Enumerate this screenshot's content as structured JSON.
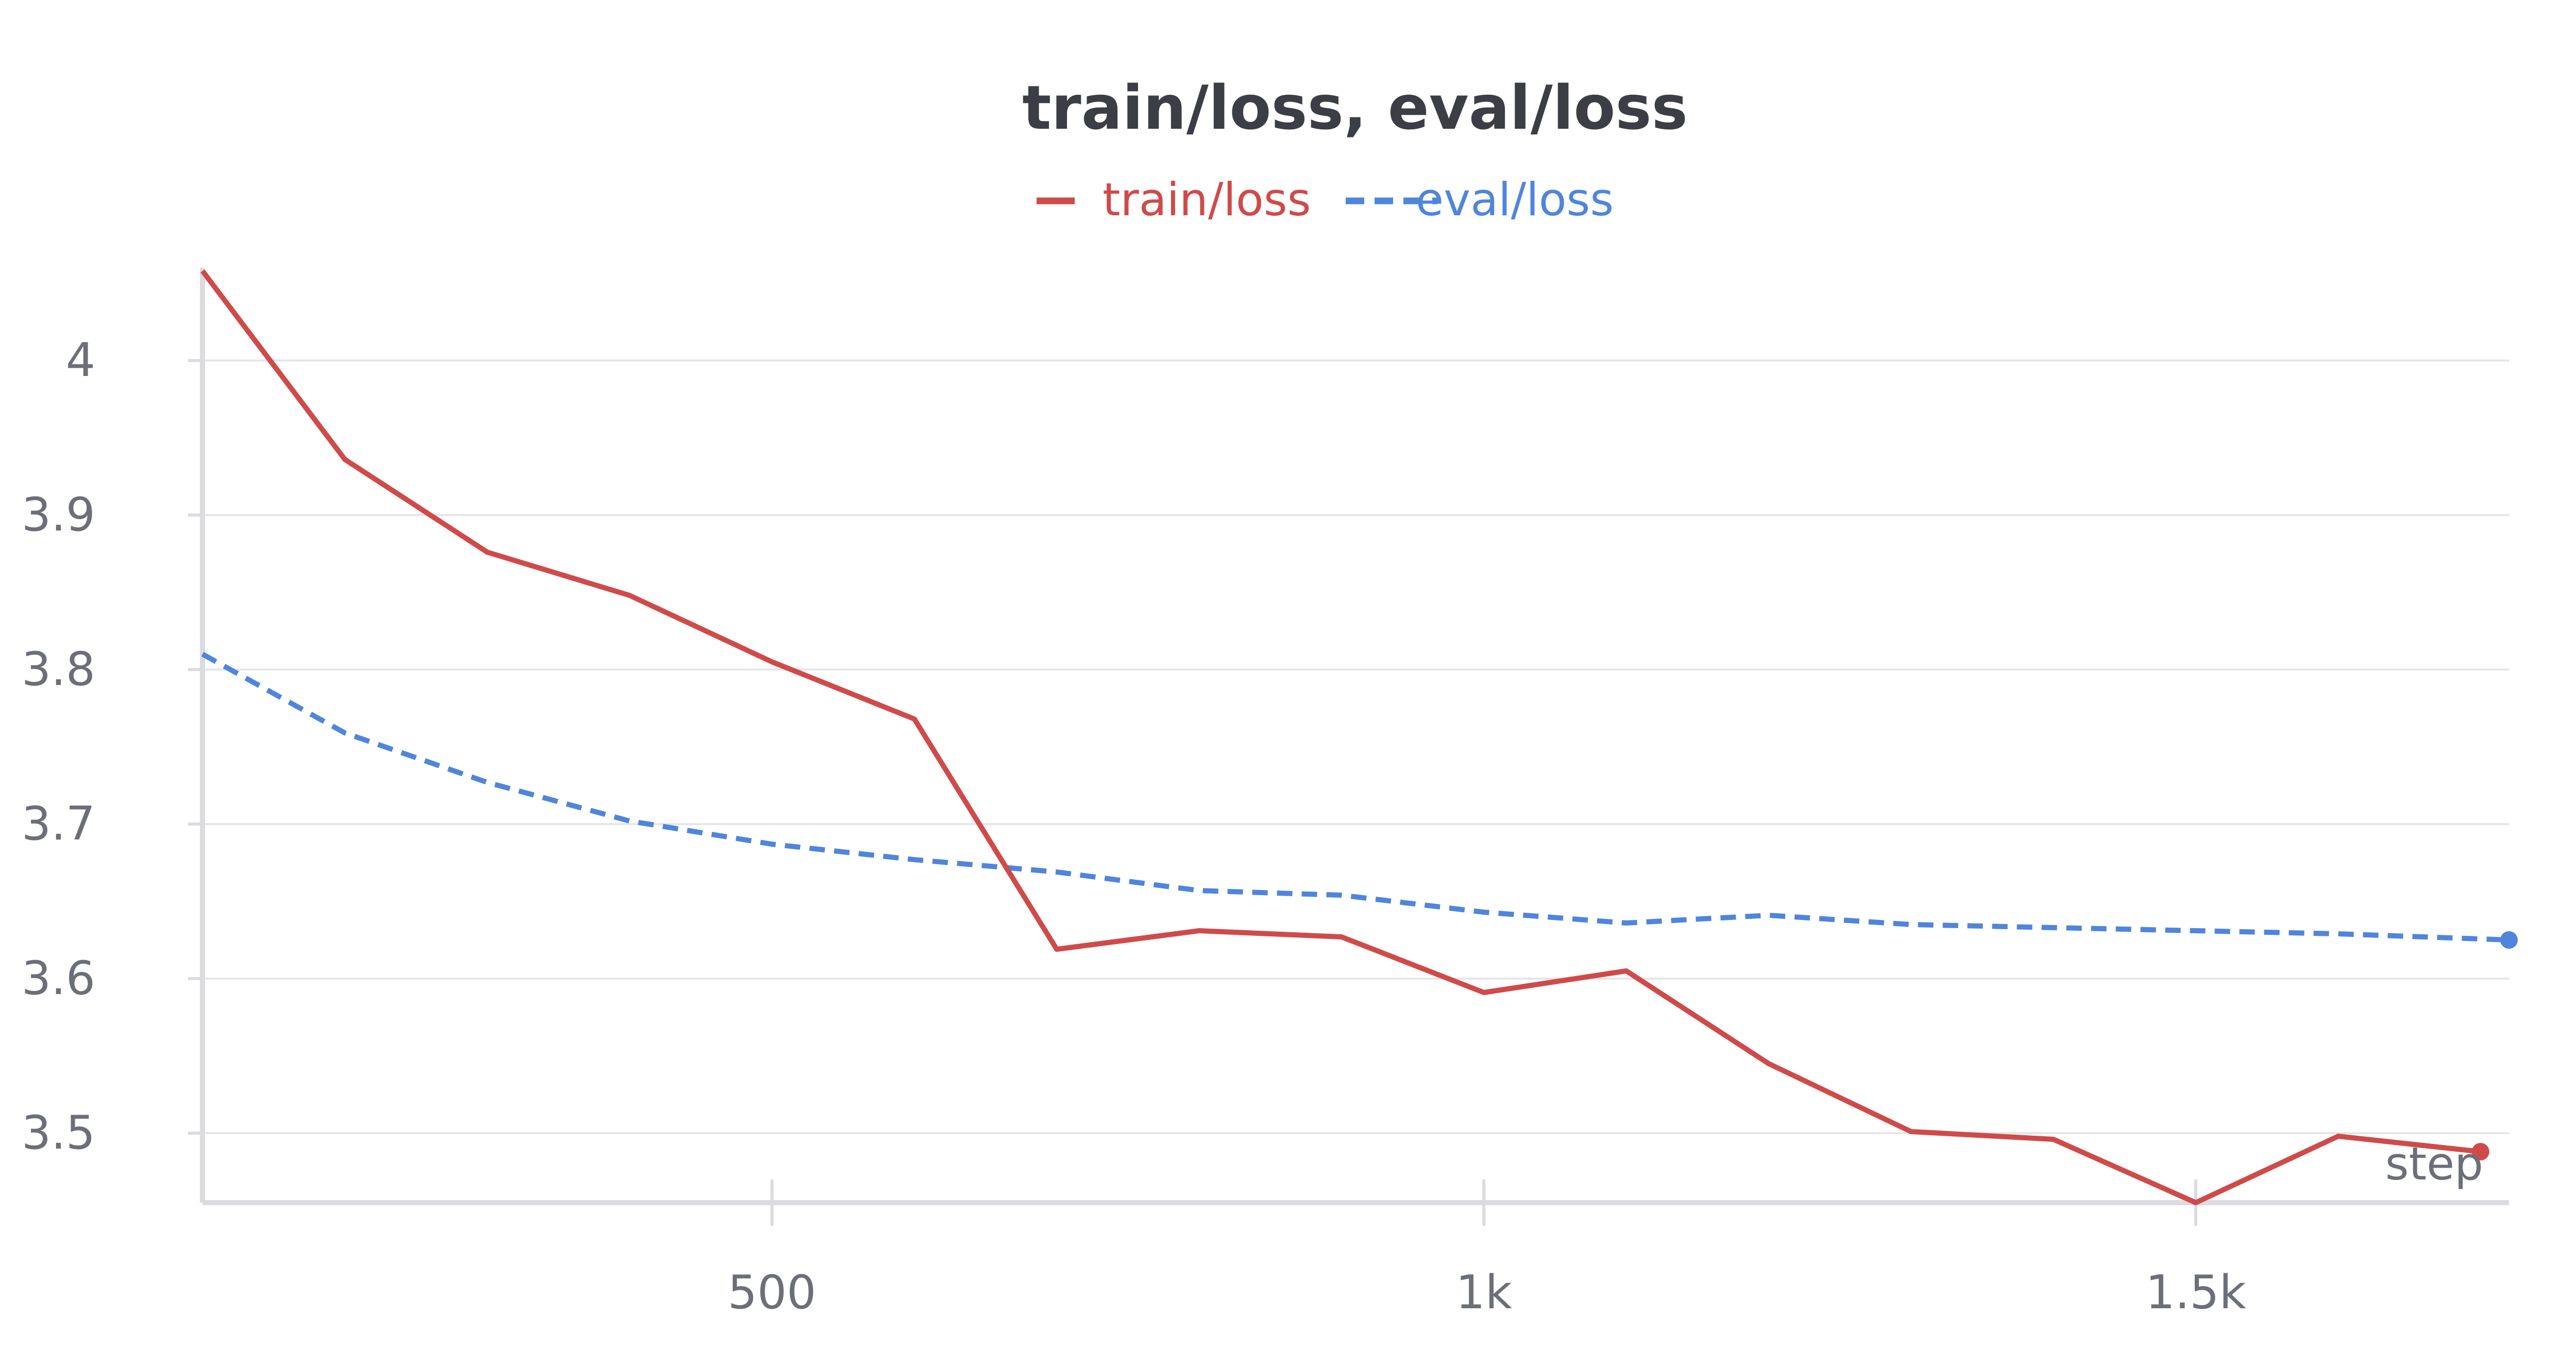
{
  "chart_data": {
    "type": "line",
    "title": "train/loss, eval/loss",
    "xlabel": "step",
    "ylabel": "",
    "xlim": [
      100,
      1720
    ],
    "ylim": [
      3.455,
      4.06
    ],
    "x_ticks": [
      {
        "value": 500,
        "label": "500"
      },
      {
        "value": 1000,
        "label": "1k"
      },
      {
        "value": 1500,
        "label": "1.5k"
      }
    ],
    "y_ticks": [
      {
        "value": 3.5,
        "label": "3.5"
      },
      {
        "value": 3.6,
        "label": "3.6"
      },
      {
        "value": 3.7,
        "label": "3.7"
      },
      {
        "value": 3.8,
        "label": "3.8"
      },
      {
        "value": 3.9,
        "label": "3.9"
      },
      {
        "value": 4.0,
        "label": "4"
      }
    ],
    "grid": true,
    "legend_position": "top-center",
    "series": [
      {
        "name": "train/loss",
        "color": "#d04a4a",
        "style": "solid",
        "x": [
          100,
          200,
          300,
          400,
          500,
          600,
          700,
          800,
          900,
          1000,
          1100,
          1200,
          1300,
          1400,
          1500,
          1600,
          1700
        ],
        "y": [
          4.058,
          3.936,
          3.876,
          3.848,
          3.805,
          3.768,
          3.619,
          3.631,
          3.627,
          3.591,
          3.605,
          3.545,
          3.501,
          3.496,
          3.455,
          3.498,
          3.488
        ]
      },
      {
        "name": "eval/loss",
        "color": "#4f85dc",
        "style": "dashed",
        "x": [
          100,
          200,
          300,
          400,
          500,
          600,
          700,
          800,
          900,
          1000,
          1100,
          1200,
          1300,
          1400,
          1500,
          1600,
          1720
        ],
        "y": [
          3.81,
          3.759,
          3.727,
          3.702,
          3.687,
          3.677,
          3.669,
          3.657,
          3.654,
          3.643,
          3.636,
          3.641,
          3.635,
          3.633,
          3.631,
          3.629,
          3.625
        ]
      }
    ]
  }
}
